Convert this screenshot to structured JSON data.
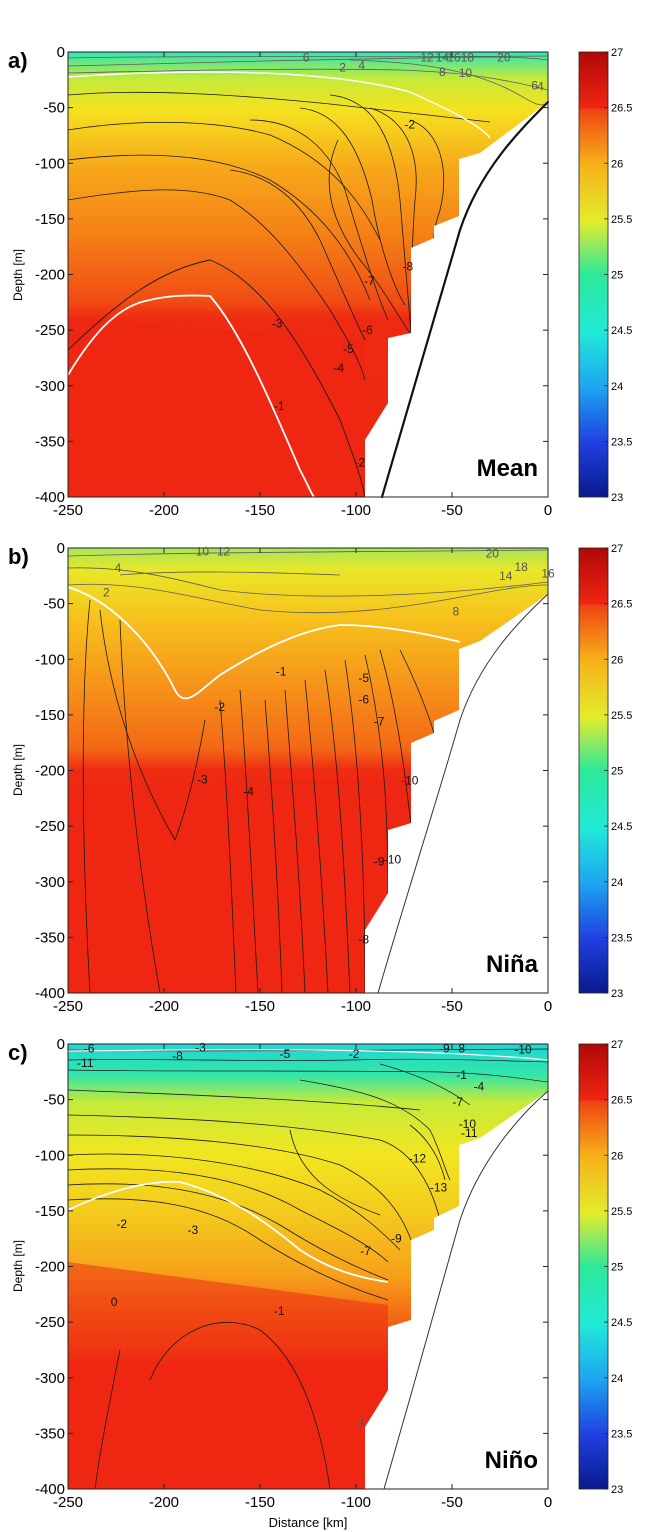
{
  "chart_data": [
    {
      "type": "contour",
      "panel_label": "a)",
      "title": "Mean",
      "xlabel": "",
      "ylabel": "Depth [m]",
      "xlim": [
        -250,
        0
      ],
      "ylim": [
        -400,
        0
      ],
      "x_ticks": [
        "-250",
        "-200",
        "-150",
        "-100",
        "-50",
        "0"
      ],
      "y_ticks": [
        "0",
        "-50",
        "-100",
        "-150",
        "-200",
        "-250",
        "-300",
        "-350",
        "-400"
      ],
      "colorbar": {
        "min": 23,
        "max": 27,
        "ticks": [
          "27",
          "26.5",
          "26",
          "25.5",
          "25",
          "24.5",
          "24",
          "23.5",
          "23"
        ]
      },
      "contour_labels": [
        {
          "text": "6",
          "x": -126,
          "y": -5
        },
        {
          "text": "12",
          "x": -63,
          "y": -5
        },
        {
          "text": "14",
          "x": -55,
          "y": -5
        },
        {
          "text": "16",
          "x": -49,
          "y": -5
        },
        {
          "text": "18",
          "x": -42,
          "y": -5
        },
        {
          "text": "20",
          "x": -23,
          "y": -5
        },
        {
          "text": "2",
          "x": -107,
          "y": -14
        },
        {
          "text": "4",
          "x": -97,
          "y": -12
        },
        {
          "text": "8",
          "x": -55,
          "y": -18
        },
        {
          "text": "10",
          "x": -43,
          "y": -19
        },
        {
          "text": "6",
          "x": -7,
          "y": -30
        },
        {
          "text": "4",
          "x": -4,
          "y": -31
        },
        {
          "text": "-2",
          "x": -72,
          "y": -65
        },
        {
          "text": "-8",
          "x": -73,
          "y": -193
        },
        {
          "text": "-7",
          "x": -93,
          "y": -206
        },
        {
          "text": "-3",
          "x": -141,
          "y": -244
        },
        {
          "text": "-6",
          "x": -94,
          "y": -250
        },
        {
          "text": "-5",
          "x": -104,
          "y": -267
        },
        {
          "text": "-4",
          "x": -109,
          "y": -284
        },
        {
          "text": "-1",
          "x": -140,
          "y": -318
        },
        {
          "text": "-2",
          "x": -98,
          "y": -369
        }
      ]
    },
    {
      "type": "contour",
      "panel_label": "b)",
      "title": "Niña",
      "xlabel": "",
      "ylabel": "Depth [m]",
      "xlim": [
        -250,
        0
      ],
      "ylim": [
        -400,
        0
      ],
      "x_ticks": [
        "-250",
        "-200",
        "-150",
        "-100",
        "-50",
        "0"
      ],
      "y_ticks": [
        "0",
        "-50",
        "-100",
        "-150",
        "-200",
        "-250",
        "-300",
        "-350",
        "-400"
      ],
      "colorbar": {
        "min": 23,
        "max": 27,
        "ticks": [
          "27",
          "26.5",
          "26",
          "25.5",
          "25",
          "24.5",
          "24",
          "23.5",
          "23"
        ]
      },
      "contour_labels": [
        {
          "text": "10",
          "x": -180,
          "y": -3
        },
        {
          "text": "12",
          "x": -169,
          "y": -3
        },
        {
          "text": "4",
          "x": -224,
          "y": -18
        },
        {
          "text": "2",
          "x": -230,
          "y": -40
        },
        {
          "text": "20",
          "x": -29,
          "y": -5
        },
        {
          "text": "18",
          "x": -14,
          "y": -17
        },
        {
          "text": "14",
          "x": -22,
          "y": -25
        },
        {
          "text": "16",
          "x": 0,
          "y": -23
        },
        {
          "text": "8",
          "x": -48,
          "y": -57
        },
        {
          "text": "-1",
          "x": -139,
          "y": -111
        },
        {
          "text": "-5",
          "x": -96,
          "y": -117
        },
        {
          "text": "-6",
          "x": -96,
          "y": -136
        },
        {
          "text": "-2",
          "x": -171,
          "y": -143
        },
        {
          "text": "-7",
          "x": -88,
          "y": -156
        },
        {
          "text": "-3",
          "x": -180,
          "y": -208
        },
        {
          "text": "-4",
          "x": -156,
          "y": -219
        },
        {
          "text": "-10",
          "x": -72,
          "y": -209
        },
        {
          "text": "-10",
          "x": -81,
          "y": -280
        },
        {
          "text": "-9",
          "x": -88,
          "y": -282
        },
        {
          "text": "-8",
          "x": -96,
          "y": -352
        }
      ]
    },
    {
      "type": "contour",
      "panel_label": "c)",
      "title": "Niño",
      "xlabel": "Distance [km]",
      "ylabel": "Depth [m]",
      "xlim": [
        -250,
        0
      ],
      "ylim": [
        -400,
        0
      ],
      "x_ticks": [
        "-250",
        "-200",
        "-150",
        "-100",
        "-50",
        "0"
      ],
      "y_ticks": [
        "0",
        "-50",
        "-100",
        "-150",
        "-200",
        "-250",
        "-300",
        "-350",
        "-400"
      ],
      "colorbar": {
        "min": 23,
        "max": 27,
        "ticks": [
          "27",
          "26.5",
          "26",
          "25.5",
          "25",
          "24.5",
          "24",
          "23.5",
          "23"
        ]
      },
      "contour_labels": [
        {
          "text": "-6",
          "x": -239,
          "y": -4
        },
        {
          "text": "-3",
          "x": -181,
          "y": -3
        },
        {
          "text": "-8",
          "x": -193,
          "y": -11
        },
        {
          "text": "-11",
          "x": -241,
          "y": -17
        },
        {
          "text": "-5",
          "x": -137,
          "y": -9
        },
        {
          "text": "-2",
          "x": -101,
          "y": -9
        },
        {
          "text": "-9",
          "x": -54,
          "y": -4
        },
        {
          "text": "-8",
          "x": -46,
          "y": -4
        },
        {
          "text": "-10",
          "x": -13,
          "y": -5
        },
        {
          "text": "-1",
          "x": -45,
          "y": -28
        },
        {
          "text": "-4",
          "x": -36,
          "y": -38
        },
        {
          "text": "-7",
          "x": -47,
          "y": -52
        },
        {
          "text": "-10",
          "x": -42,
          "y": -72
        },
        {
          "text": "-11",
          "x": -41,
          "y": -80
        },
        {
          "text": "-12",
          "x": -68,
          "y": -103
        },
        {
          "text": "-13",
          "x": -57,
          "y": -129
        },
        {
          "text": "-2",
          "x": -222,
          "y": -162
        },
        {
          "text": "-3",
          "x": -185,
          "y": -167
        },
        {
          "text": "-9",
          "x": -79,
          "y": -175
        },
        {
          "text": "-7",
          "x": -95,
          "y": -186
        },
        {
          "text": "-1",
          "x": -140,
          "y": -240
        },
        {
          "text": "0",
          "x": -226,
          "y": -232
        },
        {
          "text": "4",
          "x": -97,
          "y": -340
        }
      ]
    }
  ]
}
